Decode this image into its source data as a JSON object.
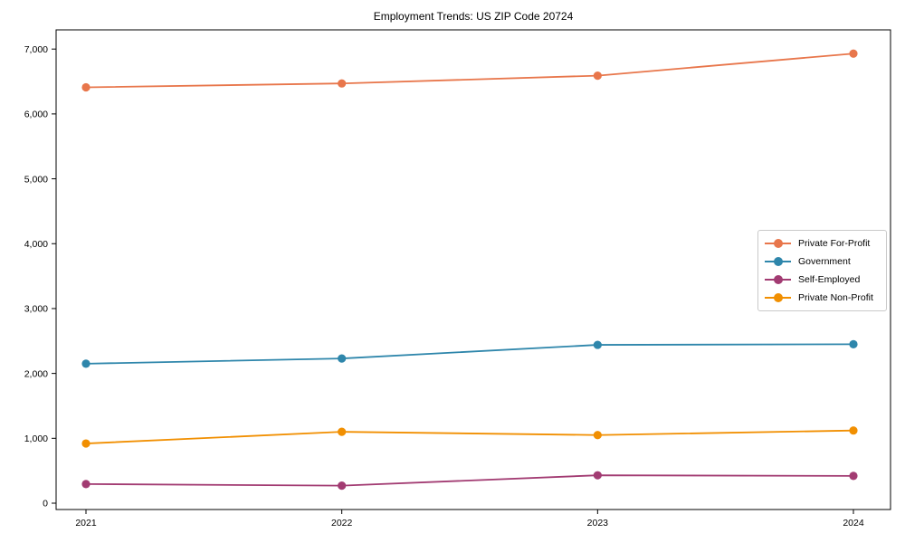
{
  "title": "Employment Trends: US ZIP Code 20724",
  "chart_data": {
    "type": "line",
    "title": "Employment Trends: US ZIP Code 20724",
    "xlabel": "",
    "ylabel": "",
    "categories": [
      "2021",
      "2022",
      "2023",
      "2024"
    ],
    "series": [
      {
        "name": "Private For-Profit",
        "color": "#E8764B",
        "values": [
          6410,
          6470,
          6590,
          6930
        ]
      },
      {
        "name": "Government",
        "color": "#2E86AB",
        "values": [
          2150,
          2230,
          2440,
          2450
        ]
      },
      {
        "name": "Self-Employed",
        "color": "#A23B72",
        "values": [
          295,
          270,
          430,
          420
        ]
      },
      {
        "name": "Private Non-Profit",
        "color": "#F18F01",
        "values": [
          920,
          1100,
          1050,
          1120
        ]
      }
    ],
    "ylim": [
      0,
      7300
    ],
    "yticks": [
      0,
      1000,
      2000,
      3000,
      4000,
      5000,
      6000,
      7000
    ],
    "ytick_labels": [
      "0",
      "1,000",
      "2,000",
      "3,000",
      "4,000",
      "5,000",
      "6,000",
      "7,000"
    ],
    "grid": false,
    "legend_position": "center-right",
    "marker": "circle"
  },
  "style": {
    "axis_color": "#000000",
    "tick_label_color": "#000000",
    "background": "#ffffff"
  }
}
